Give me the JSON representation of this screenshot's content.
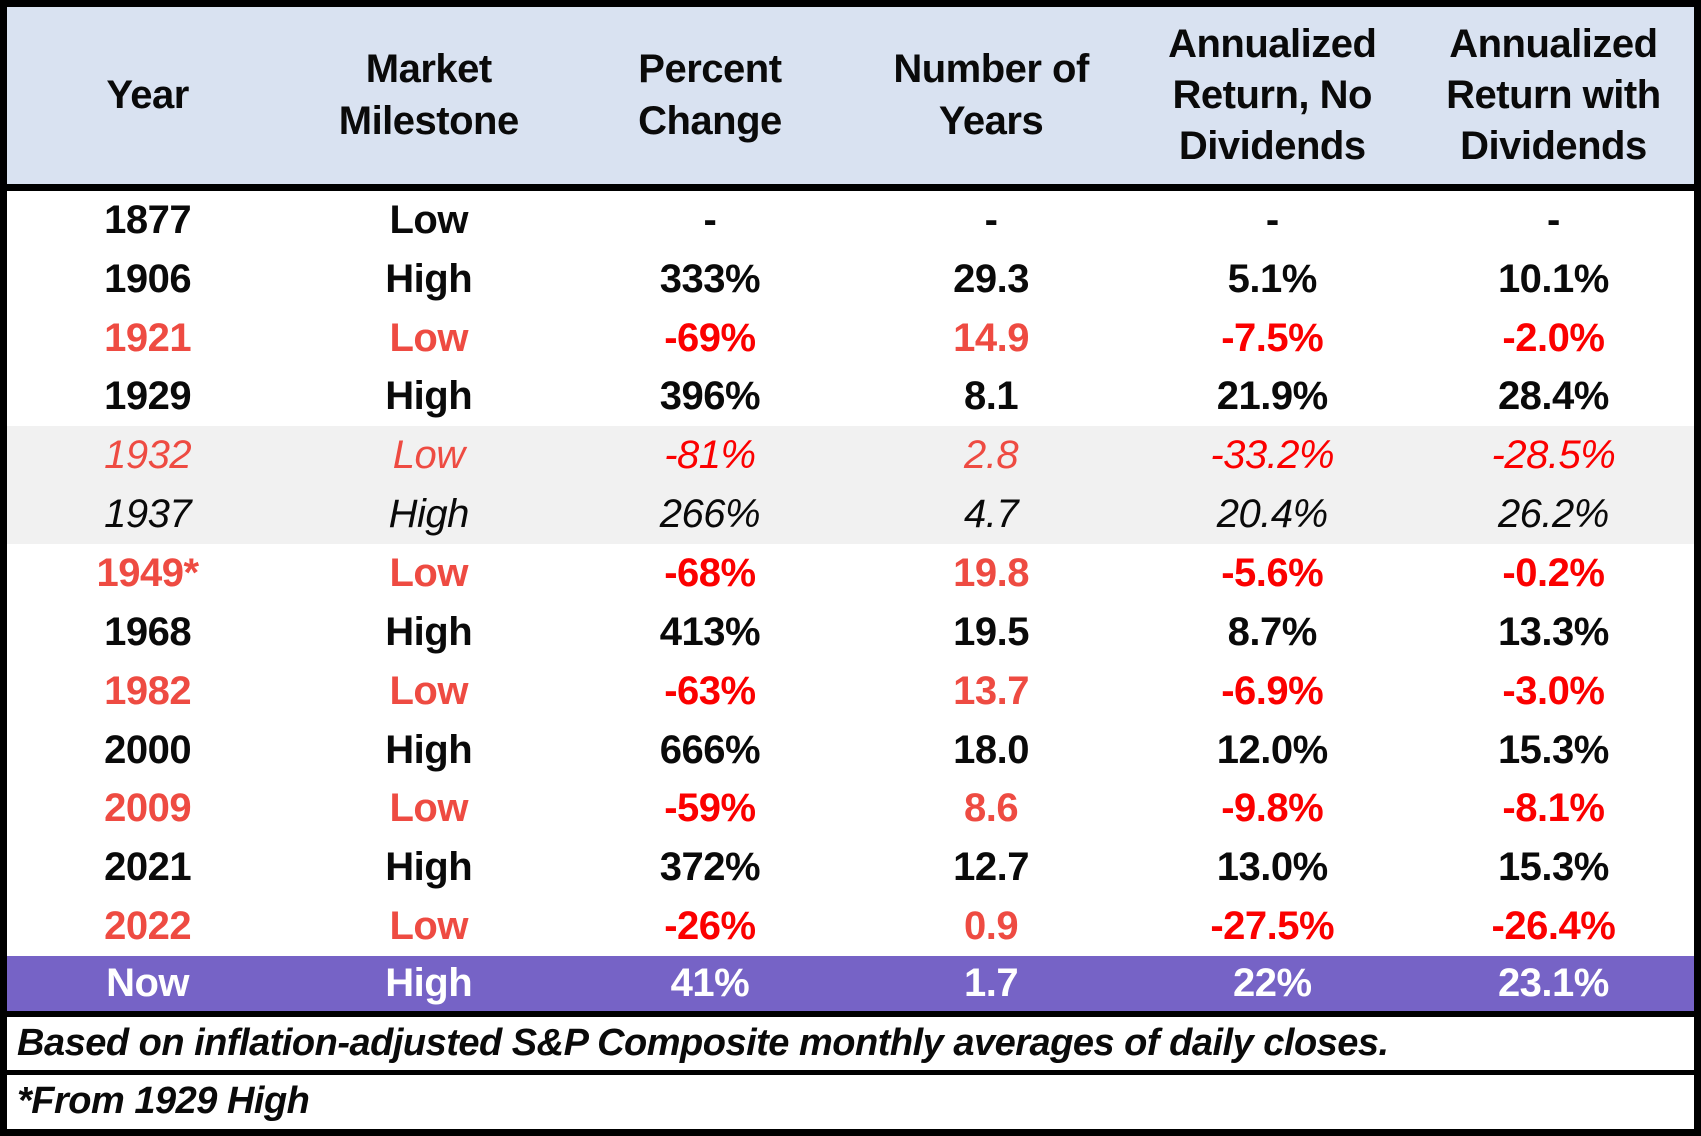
{
  "colors": {
    "header_bg": "#d9e2f1",
    "band_bg": "#f1f1f1",
    "highlight_bg": "#7663c6",
    "highlight_text": "#ffffff",
    "text": "#0a0a0a",
    "red_soft": "#ee4b42",
    "red_bright": "#fb0000"
  },
  "chart_data": {
    "type": "table",
    "columns": [
      "Year",
      "Market Milestone",
      "Percent Change",
      "Number of Years",
      "Annualized Return, No Dividends",
      "Annualized Return with Dividends"
    ],
    "column_keys": [
      "year",
      "market-milestone",
      "percent-change",
      "number-of-years",
      "annualized-return-no-dividends",
      "annualized-return-with-dividends"
    ],
    "bright_red_columns": [
      2,
      4,
      5
    ],
    "rows": [
      {
        "cells": [
          "1877",
          "Low",
          "-",
          "-",
          "-",
          "-"
        ],
        "color": "black",
        "italic": false,
        "band": false,
        "now": false
      },
      {
        "cells": [
          "1906",
          "High",
          "333%",
          "29.3",
          "5.1%",
          "10.1%"
        ],
        "color": "black",
        "italic": false,
        "band": false,
        "now": false
      },
      {
        "cells": [
          "1921",
          "Low",
          "-69%",
          "14.9",
          "-7.5%",
          "-2.0%"
        ],
        "color": "red",
        "italic": false,
        "band": false,
        "now": false
      },
      {
        "cells": [
          "1929",
          "High",
          "396%",
          "8.1",
          "21.9%",
          "28.4%"
        ],
        "color": "black",
        "italic": false,
        "band": false,
        "now": false
      },
      {
        "cells": [
          "1932",
          "Low",
          "-81%",
          "2.8",
          "-33.2%",
          "-28.5%"
        ],
        "color": "red",
        "italic": true,
        "band": true,
        "now": false
      },
      {
        "cells": [
          "1937",
          "High",
          "266%",
          "4.7",
          "20.4%",
          "26.2%"
        ],
        "color": "black",
        "italic": true,
        "band": true,
        "now": false
      },
      {
        "cells": [
          "1949*",
          "Low",
          "-68%",
          "19.8",
          "-5.6%",
          "-0.2%"
        ],
        "color": "red",
        "italic": false,
        "band": false,
        "now": false
      },
      {
        "cells": [
          "1968",
          "High",
          "413%",
          "19.5",
          "8.7%",
          "13.3%"
        ],
        "color": "black",
        "italic": false,
        "band": false,
        "now": false
      },
      {
        "cells": [
          "1982",
          "Low",
          "-63%",
          "13.7",
          "-6.9%",
          "-3.0%"
        ],
        "color": "red",
        "italic": false,
        "band": false,
        "now": false
      },
      {
        "cells": [
          "2000",
          "High",
          "666%",
          "18.0",
          "12.0%",
          "15.3%"
        ],
        "color": "black",
        "italic": false,
        "band": false,
        "now": false
      },
      {
        "cells": [
          "2009",
          "Low",
          "-59%",
          "8.6",
          "-9.8%",
          "-8.1%"
        ],
        "color": "red",
        "italic": false,
        "band": false,
        "now": false
      },
      {
        "cells": [
          "2021",
          "High",
          "372%",
          "12.7",
          "13.0%",
          "15.3%"
        ],
        "color": "black",
        "italic": false,
        "band": false,
        "now": false
      },
      {
        "cells": [
          "2022",
          "Low",
          "-26%",
          "0.9",
          "-27.5%",
          "-26.4%"
        ],
        "color": "red",
        "italic": false,
        "band": false,
        "now": false
      },
      {
        "cells": [
          "Now",
          "High",
          "41%",
          "1.7",
          "22%",
          "23.1%"
        ],
        "color": "white",
        "italic": false,
        "band": false,
        "now": true
      }
    ],
    "footnotes": [
      "Based on inflation-adjusted S&P Composite monthly averages of daily closes.",
      "*From 1929 High"
    ]
  }
}
